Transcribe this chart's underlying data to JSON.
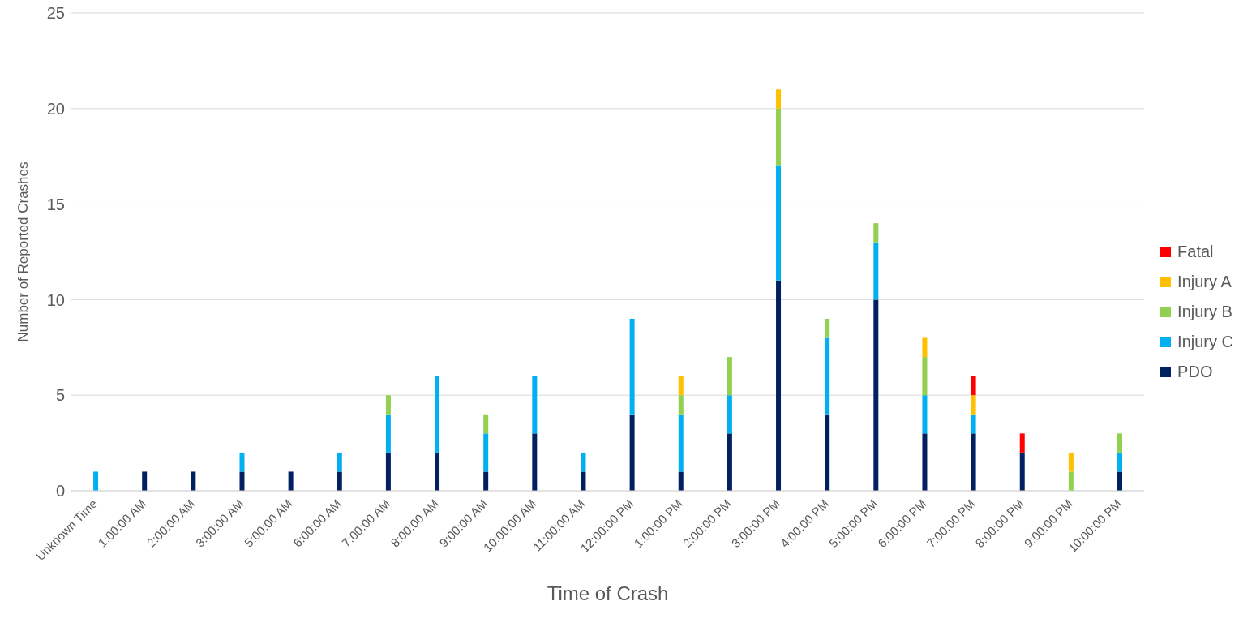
{
  "chart_data": {
    "type": "bar",
    "stacked": true,
    "xlabel": "Time of Crash",
    "ylabel": "Number of Reported Crashes",
    "categories": [
      "Unknown Time",
      "1:00:00 AM",
      "2:00:00 AM",
      "3:00:00 AM",
      "5:00:00 AM",
      "6:00:00 AM",
      "7:00:00 AM",
      "8:00:00 AM",
      "9:00:00 AM",
      "10:00:00 AM",
      "11:00:00 AM",
      "12:00:00 PM",
      "1:00:00 PM",
      "2:00:00 PM",
      "3:00:00 PM",
      "4:00:00 PM",
      "5:00:00 PM",
      "6:00:00 PM",
      "7:00:00 PM",
      "8:00:00 PM",
      "9:00:00 PM",
      "10:00:00 PM"
    ],
    "series": [
      {
        "name": "PDO",
        "color": "#002060",
        "values": [
          0,
          1,
          1,
          1,
          1,
          1,
          2,
          2,
          1,
          3,
          1,
          4,
          1,
          3,
          11,
          4,
          10,
          3,
          3,
          2,
          0,
          1
        ]
      },
      {
        "name": "Injury C",
        "color": "#00b0f0",
        "values": [
          1,
          0,
          0,
          1,
          0,
          1,
          2,
          4,
          2,
          3,
          1,
          5,
          3,
          2,
          6,
          4,
          3,
          2,
          1,
          0,
          0,
          1
        ]
      },
      {
        "name": "Injury B",
        "color": "#92d050",
        "values": [
          0,
          0,
          0,
          0,
          0,
          0,
          1,
          0,
          1,
          0,
          0,
          0,
          1,
          2,
          3,
          1,
          1,
          2,
          0,
          0,
          1,
          1
        ]
      },
      {
        "name": "Injury A",
        "color": "#ffc000",
        "values": [
          0,
          0,
          0,
          0,
          0,
          0,
          0,
          0,
          0,
          0,
          0,
          0,
          1,
          0,
          1,
          0,
          0,
          1,
          1,
          0,
          1,
          0
        ]
      },
      {
        "name": "Fatal",
        "color": "#ff0000",
        "values": [
          0,
          0,
          0,
          0,
          0,
          0,
          0,
          0,
          0,
          0,
          0,
          0,
          0,
          0,
          0,
          0,
          0,
          0,
          1,
          1,
          0,
          0
        ]
      }
    ],
    "ylim": [
      0,
      25
    ],
    "yticks": [
      0,
      5,
      10,
      15,
      20,
      25
    ],
    "grid": "y",
    "legend": "right"
  }
}
